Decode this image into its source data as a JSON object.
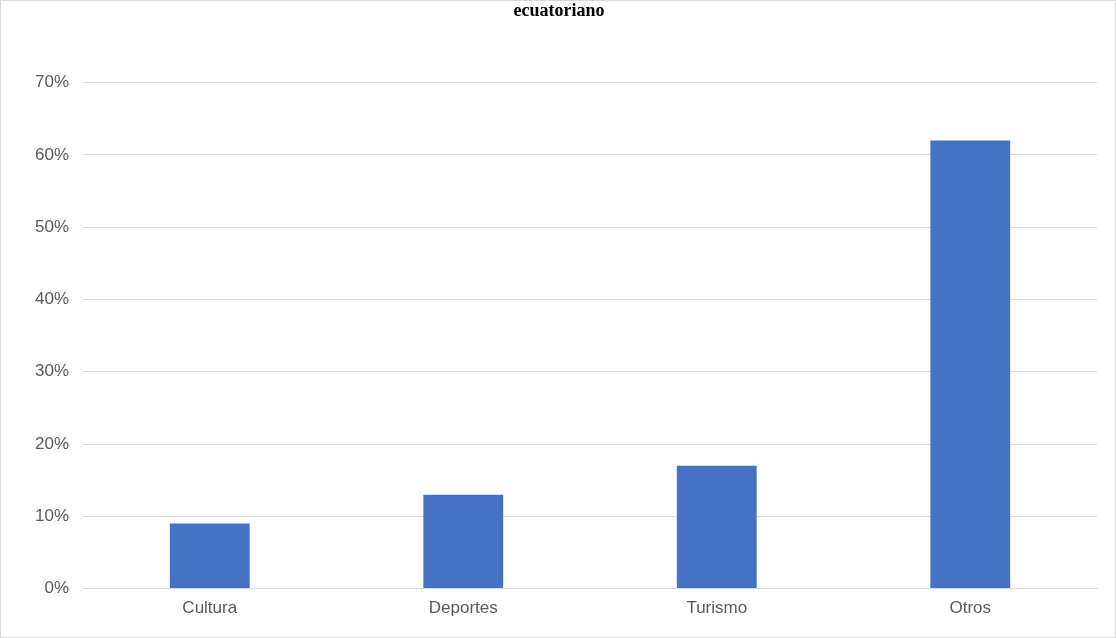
{
  "chart_data": {
    "type": "bar",
    "title": "ecuatoriano",
    "categories": [
      "Cultura",
      "Deportes",
      "Turismo",
      "Otros"
    ],
    "values": [
      9,
      13,
      17,
      62
    ],
    "color": "#4472c4",
    "ylim": [
      0,
      70
    ],
    "yticks": [
      {
        "value": 0,
        "label": "0%"
      },
      {
        "value": 10,
        "label": "10%"
      },
      {
        "value": 20,
        "label": "20%"
      },
      {
        "value": 30,
        "label": "30%"
      },
      {
        "value": 40,
        "label": "40%"
      },
      {
        "value": 50,
        "label": "50%"
      },
      {
        "value": 60,
        "label": "60%"
      },
      {
        "value": 70,
        "label": "70%"
      }
    ],
    "grid": "y"
  }
}
